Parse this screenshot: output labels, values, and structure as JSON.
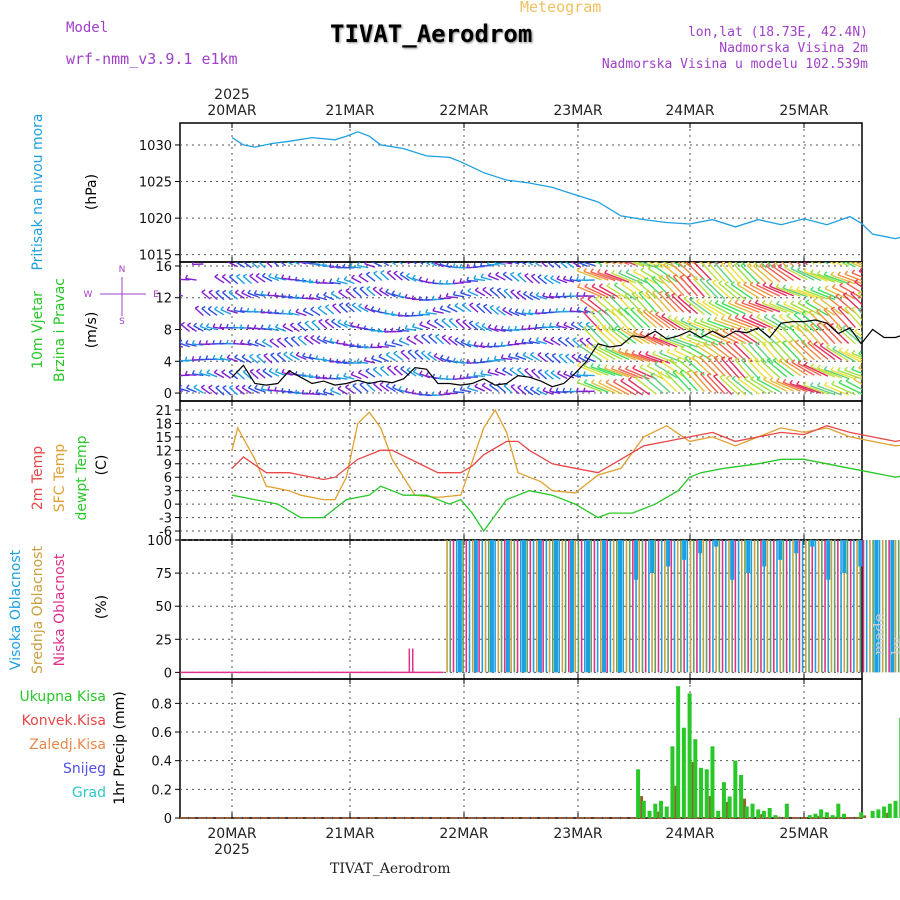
{
  "header": {
    "meteogram": "Meteogram",
    "title": "TIVAT_Aerodrom",
    "model_label": "Model",
    "model_name": "wrf-nmm_v3.9.1 e1km",
    "coords": "lon,lat (18.73E, 42.4N)",
    "elevation": "Nadmorska Visina 2m",
    "model_elevation": "Nadmorska Visina u modelu 102.539m"
  },
  "footer": {
    "station": "TIVAT_Aerodrom",
    "credit": "made by Angel"
  },
  "time_axis": {
    "year": "2025",
    "dates": [
      "20MAR",
      "21MAR",
      "22MAR",
      "23MAR",
      "24MAR",
      "25MAR"
    ]
  },
  "colors": {
    "pressure": "#1ea0e0",
    "temp": "#e84848",
    "sfc": "#e0a030",
    "dew": "#28c828",
    "high_cloud": "#1ea0e0",
    "mid_cloud": "#c8a040",
    "low_cloud": "#e0308c",
    "total_precip": "#28c828",
    "conv_precip": "#e84848",
    "frz_precip": "#e8884a",
    "snow": "#5050e8",
    "hail": "#30c8c8",
    "wind_speed_line": "#000000"
  },
  "chart_data": [
    {
      "type": "line",
      "ylabel": [
        "Pritisak na nivou mora",
        "(hPa)"
      ],
      "ylim": [
        1014,
        1033
      ],
      "yticks": [
        1015,
        1020,
        1025,
        1030
      ],
      "series": [
        {
          "name": "Pritisak na nivou mora",
          "x": [
            0,
            0.1,
            0.2,
            0.35,
            0.5,
            0.7,
            0.9,
            1.0,
            1.1,
            1.2,
            1.3,
            1.5,
            1.7,
            1.9,
            2.0,
            2.2,
            2.4,
            2.5,
            2.6,
            2.8,
            3.0,
            3.2,
            3.4,
            3.6,
            3.8,
            4.0,
            4.2,
            4.4,
            4.6,
            4.8,
            5.0,
            5.2,
            5.4,
            5.5,
            5.6,
            5.8,
            5.9,
            6.0,
            6.1
          ],
          "y": [
            1031,
            1030,
            1029.7,
            1030.2,
            1030.5,
            1031,
            1030.7,
            1031.2,
            1031.8,
            1031.2,
            1030,
            1029.5,
            1028.5,
            1028.3,
            1027.7,
            1026.2,
            1025.2,
            1025,
            1024.8,
            1024.2,
            1023.2,
            1022.2,
            1020.3,
            1019.8,
            1019.4,
            1019.2,
            1019.8,
            1018.8,
            1019.8,
            1019.1,
            1019.9,
            1019.1,
            1020.2,
            1019.3,
            1017.8,
            1017.2,
            1017.6,
            1017.1,
            1015
          ]
        }
      ]
    },
    {
      "type": "line",
      "ylabel": [
        "10m Vjetar",
        "Brzina i Pravac",
        "(m/s)"
      ],
      "compass": [
        "N",
        "W",
        "E",
        "S"
      ],
      "ylim": [
        -1,
        16.5
      ],
      "yticks": [
        0,
        4,
        8,
        12,
        16
      ],
      "series": [
        {
          "name": "Brzina vjetra",
          "x": [
            0,
            0.1,
            0.2,
            0.3,
            0.4,
            0.5,
            0.6,
            0.7,
            0.8,
            0.9,
            1.0,
            1.1,
            1.2,
            1.3,
            1.4,
            1.5,
            1.6,
            1.7,
            1.8,
            1.9,
            2.0,
            2.1,
            2.2,
            2.3,
            2.4,
            2.5,
            2.6,
            2.7,
            2.8,
            2.9,
            3.0,
            3.1,
            3.2,
            3.3,
            3.4,
            3.5,
            3.6,
            3.7,
            3.8,
            3.9,
            4.0,
            4.1,
            4.2,
            4.3,
            4.4,
            4.5,
            4.6,
            4.7,
            4.8,
            4.9,
            5.0,
            5.1,
            5.2,
            5.3,
            5.4,
            5.5,
            5.6,
            5.7,
            5.8,
            5.9,
            6.0,
            6.1
          ],
          "y": [
            2.0,
            3.5,
            1.2,
            1.0,
            1.2,
            2.8,
            2.0,
            1.2,
            1.5,
            1.0,
            1.2,
            1.6,
            1.2,
            1.5,
            1.3,
            1.8,
            3.2,
            3.0,
            1.2,
            1.2,
            1.0,
            1.2,
            1.8,
            1.0,
            1.2,
            2.2,
            2.0,
            1.5,
            0.8,
            1.2,
            2.5,
            4.0,
            6.2,
            5.8,
            6.0,
            7.2,
            7.0,
            7.8,
            6.8,
            7.2,
            7.8,
            7.0,
            7.8,
            7.0,
            7.8,
            7.6,
            8.2,
            7.0,
            8.8,
            9.0,
            9.0,
            9.2,
            8.8,
            7.5,
            8.2,
            6.2,
            8.0,
            7.0,
            7.0,
            7.5,
            6.0,
            4.5
          ]
        }
      ]
    },
    {
      "type": "line",
      "ylabel": [
        "2m Temp",
        "SFC Temp",
        "dewpt Temp",
        "(C)"
      ],
      "ylim": [
        -8,
        23
      ],
      "yticks": [
        -6,
        -3,
        0,
        3,
        6,
        9,
        12,
        15,
        18,
        21
      ],
      "series": [
        {
          "name": "2m Temp",
          "x": [
            0,
            0.1,
            0.3,
            0.5,
            0.6,
            0.8,
            0.9,
            1.1,
            1.3,
            1.4,
            1.6,
            1.8,
            2.0,
            2.1,
            2.2,
            2.4,
            2.5,
            2.6,
            2.8,
            3.0,
            3.2,
            3.4,
            3.6,
            3.8,
            4.0,
            4.2,
            4.4,
            4.6,
            4.8,
            5.0,
            5.2,
            5.4,
            5.6,
            5.8,
            6.0,
            6.1
          ],
          "y": [
            8,
            10.5,
            7,
            7,
            6.5,
            5.5,
            6,
            10,
            12,
            12,
            9.5,
            7,
            7,
            8.5,
            11,
            14,
            14,
            12,
            9,
            8,
            7,
            10,
            13,
            14,
            15,
            16,
            14,
            15,
            16,
            15.5,
            17.5,
            16,
            15,
            14,
            15,
            16.5
          ]
        },
        {
          "name": "SFC Temp",
          "x": [
            0,
            0.05,
            0.2,
            0.3,
            0.5,
            0.6,
            0.8,
            0.9,
            1.0,
            1.1,
            1.2,
            1.3,
            1.4,
            1.6,
            1.8,
            2.0,
            2.2,
            2.3,
            2.4,
            2.5,
            2.7,
            2.8,
            3.0,
            3.2,
            3.4,
            3.6,
            3.8,
            4.0,
            4.2,
            4.4,
            4.6,
            4.8,
            5.0,
            5.2,
            5.4,
            5.6,
            5.8,
            6.0,
            6.1
          ],
          "y": [
            12,
            17,
            10,
            4,
            3,
            2,
            1,
            1,
            6,
            18,
            20.5,
            17,
            10,
            2,
            1.5,
            2,
            17,
            21,
            16,
            7,
            5,
            3,
            2.5,
            6.5,
            8,
            15,
            17.5,
            14,
            15,
            13,
            15,
            17,
            16,
            17,
            15,
            14,
            13,
            13.5,
            15
          ]
        },
        {
          "name": "dewpt Temp",
          "x": [
            0,
            0.2,
            0.4,
            0.6,
            0.8,
            1.0,
            1.2,
            1.3,
            1.4,
            1.5,
            1.7,
            1.9,
            2.0,
            2.1,
            2.2,
            2.4,
            2.6,
            2.8,
            3.0,
            3.2,
            3.3,
            3.5,
            3.7,
            3.9,
            4.0,
            4.1,
            4.3,
            4.6,
            4.8,
            5.0,
            5.2,
            5.4,
            5.6,
            5.8,
            6.0,
            6.1
          ],
          "y": [
            2,
            1,
            0,
            -3,
            -3,
            1,
            2,
            4,
            3,
            2,
            2,
            0,
            1,
            -2,
            -6,
            1,
            3,
            2,
            0,
            -3,
            -2,
            -2,
            0,
            3,
            6,
            7,
            8,
            9,
            10,
            10,
            9,
            8,
            7,
            6,
            7,
            6
          ]
        }
      ]
    },
    {
      "type": "bar",
      "ylabel": [
        "Visoka Oblacnost",
        "Srednja Oblacnost",
        "Niska Oblacnost",
        "(%)"
      ],
      "ylim": [
        -5,
        100
      ],
      "yticks": [
        0,
        25,
        50,
        75,
        100
      ],
      "series": [
        {
          "name": "Visoka Oblacnost",
          "x": [],
          "y": []
        },
        {
          "name": "Srednja Oblacnost",
          "x": [],
          "y": []
        },
        {
          "name": "Niska Oblacnost",
          "x": [
            1.55,
            1.58
          ],
          "y": [
            18,
            18
          ]
        }
      ],
      "note": "overcast columns 22MAR-25MAR, 100% with gaps"
    },
    {
      "type": "bar",
      "ylabel": [
        "1hr Precip (mm)"
      ],
      "legend": [
        "Ukupna Kisa",
        "Konvek.Kisa",
        "Zaledj.Kisa",
        "Snijeg",
        "Grad"
      ],
      "ylim": [
        0,
        0.97
      ],
      "yticks": [
        0,
        0.2,
        0.4,
        0.6,
        0.8
      ],
      "series": [
        {
          "name": "Ukupna Kisa",
          "x": [
            3.55,
            3.6,
            3.65,
            3.7,
            3.75,
            3.8,
            3.85,
            3.9,
            3.95,
            4.0,
            4.05,
            4.1,
            4.15,
            4.2,
            4.25,
            4.3,
            4.35,
            4.4,
            4.45,
            4.5,
            4.55,
            4.6,
            4.65,
            4.7,
            4.75,
            4.85,
            5.05,
            5.1,
            5.15,
            5.2,
            5.25,
            5.3,
            5.35,
            5.5,
            5.6,
            5.65,
            5.7,
            5.75,
            5.8,
            5.85,
            5.9,
            5.95,
            6.0,
            6.05
          ],
          "y": [
            0.34,
            0.12,
            0.05,
            0.1,
            0.12,
            0.08,
            0.5,
            0.92,
            0.63,
            0.87,
            0.55,
            0.35,
            0.34,
            0.5,
            0.05,
            0.25,
            0.15,
            0.4,
            0.3,
            0.08,
            0.1,
            0.06,
            0.05,
            0.07,
            0.02,
            0.1,
            0.02,
            0.03,
            0.06,
            0.04,
            0.02,
            0.1,
            0.03,
            0.04,
            0.05,
            0.06,
            0.08,
            0.1,
            0.12,
            0.7,
            0.85,
            0.82,
            0.2,
            0.07
          ]
        },
        {
          "name": "Konvek.Kisa",
          "x": [],
          "y": []
        },
        {
          "name": "Zaledj.Kisa",
          "x": [],
          "y": []
        },
        {
          "name": "Snijeg",
          "x": [],
          "y": []
        },
        {
          "name": "Grad",
          "x": [],
          "y": []
        }
      ]
    }
  ]
}
